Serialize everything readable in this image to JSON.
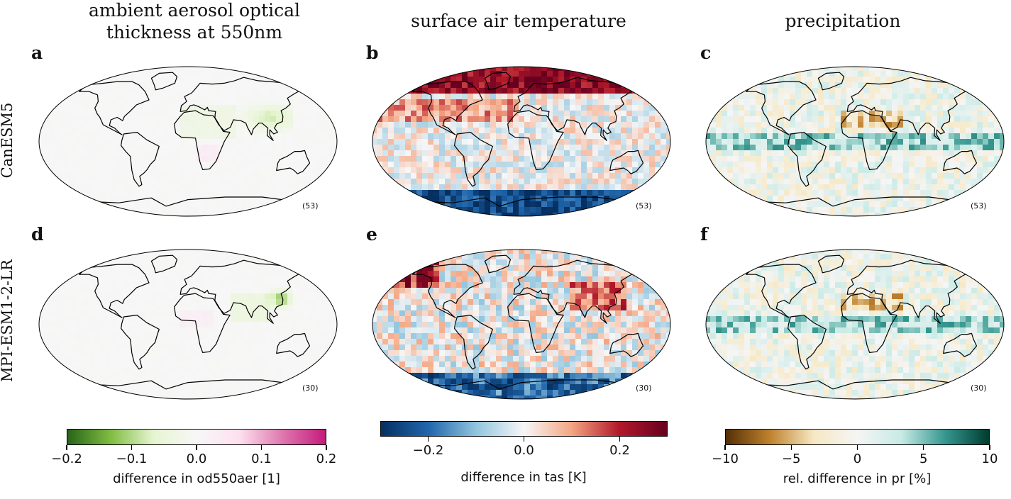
{
  "columns": [
    {
      "title": "ambient aerosol optical\nthickness at 550nm"
    },
    {
      "title": "surface air temperature"
    },
    {
      "title": "precipitation"
    }
  ],
  "rows": [
    {
      "label": "CanESM5",
      "count": "(53)"
    },
    {
      "label": "MPI-ESM1-2-LR",
      "count": "(30)"
    }
  ],
  "panels": [
    "a",
    "b",
    "c",
    "d",
    "e",
    "f"
  ],
  "colorbars": [
    {
      "label": "difference in od550aer [1]",
      "ticks": [
        "−0.2",
        "−0.1",
        "0.0",
        "0.1",
        "0.2"
      ],
      "range": [
        -0.2,
        0.2
      ],
      "tick_values": [
        -0.2,
        -0.1,
        0.0,
        0.1,
        0.2
      ],
      "colors": [
        "#276419",
        "#7fbc41",
        "#e6f5d0",
        "#f7f7f7",
        "#fde0ef",
        "#de77ae",
        "#c51b7d"
      ]
    },
    {
      "label": "difference in tas [K]",
      "ticks": [
        "−0.2",
        "0.0",
        "0.2"
      ],
      "range": [
        -0.3,
        0.3
      ],
      "tick_values": [
        -0.2,
        0.0,
        0.2
      ],
      "colors": [
        "#053061",
        "#2166ac",
        "#92c5de",
        "#f7f7f7",
        "#f4a582",
        "#b2182b",
        "#67001f"
      ]
    },
    {
      "label": "rel. difference in pr [%]",
      "ticks": [
        "−10",
        "−5",
        "0",
        "5",
        "10"
      ],
      "range": [
        -10,
        10
      ],
      "tick_values": [
        -10,
        -5,
        0,
        5,
        10
      ],
      "colors": [
        "#543005",
        "#bf812d",
        "#f6e8c3",
        "#f5f5f5",
        "#c7eae5",
        "#35978f",
        "#003c30"
      ]
    }
  ]
}
